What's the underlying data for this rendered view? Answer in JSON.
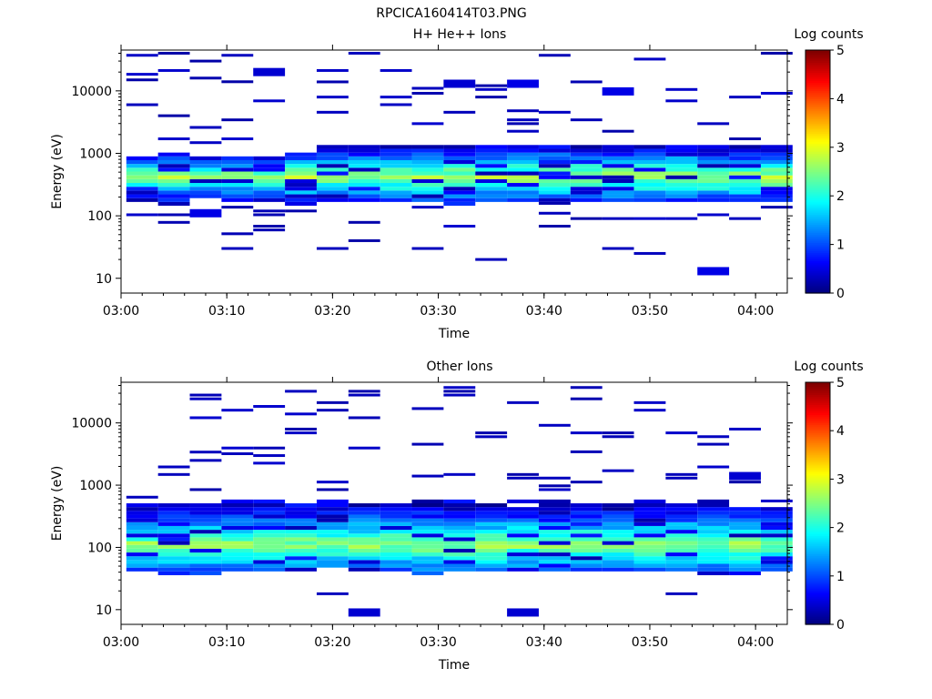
{
  "figure_title": "RPCICA160414T03.PNG",
  "chart_data": [
    {
      "type": "heatmap",
      "title": "H+ He++ Ions",
      "xlabel": "Time",
      "ylabel": "Energy (eV)",
      "x_ticks": [
        "03:00",
        "03:10",
        "03:20",
        "03:30",
        "03:40",
        "03:50",
        "04:00"
      ],
      "y_ticks": [
        "10",
        "100",
        "1000",
        "10000"
      ],
      "y_scale": "log",
      "colorbar": {
        "label": "Log counts",
        "ticks": [
          "0",
          "1",
          "2",
          "3",
          "4",
          "5"
        ],
        "range": [
          0,
          5
        ]
      },
      "colormap": "jet",
      "time_bins": [
        "03:02",
        "03:05",
        "03:08",
        "03:11",
        "03:14",
        "03:17",
        "03:20",
        "03:23",
        "03:26",
        "03:29",
        "03:32",
        "03:35",
        "03:38",
        "03:41",
        "03:44",
        "03:47",
        "03:50",
        "03:53",
        "03:56",
        "03:59",
        "04:02"
      ],
      "core_band": {
        "bottom_eV": [
          180,
          170,
          200,
          180,
          180,
          170,
          180,
          180,
          180,
          180,
          170,
          180,
          180,
          180,
          180,
          180,
          180,
          180,
          180,
          180,
          180
        ],
        "peak_eV": 420,
        "top_eV": [
          900,
          1000,
          900,
          900,
          900,
          1100,
          1300,
          1300,
          1400,
          1400,
          1400,
          1400,
          1400,
          1400,
          1400,
          1400,
          1400,
          1400,
          1400,
          1400,
          1400
        ],
        "peak_log_counts": 2.7
      },
      "sparse_counts": [
        {
          "time": "03:02",
          "energy_eV": 6000,
          "log_counts": 0.3
        },
        {
          "time": "03:02",
          "energy_eV": 15000,
          "log_counts": 0.2
        },
        {
          "time": "03:05",
          "energy_eV": 40000,
          "log_counts": 0.2
        },
        {
          "time": "03:05",
          "energy_eV": 4000,
          "log_counts": 0.2
        },
        {
          "time": "03:08",
          "energy_eV": 30000,
          "log_counts": 0.2
        },
        {
          "time": "03:08",
          "energy_eV": 2600,
          "log_counts": 0.3
        },
        {
          "time": "03:08",
          "energy_eV": 110,
          "log_counts": 0.5
        },
        {
          "time": "03:11",
          "energy_eV": 14000,
          "log_counts": 0.2
        },
        {
          "time": "03:11",
          "energy_eV": 30,
          "log_counts": 0.3
        },
        {
          "time": "03:14",
          "energy_eV": 20000,
          "log_counts": 0.4
        },
        {
          "time": "03:20",
          "energy_eV": 30,
          "log_counts": 0.3
        },
        {
          "time": "03:23",
          "energy_eV": 40000,
          "log_counts": 0.3
        },
        {
          "time": "03:23",
          "energy_eV": 40,
          "log_counts": 0.2
        },
        {
          "time": "03:29",
          "energy_eV": 11000,
          "log_counts": 0.3
        },
        {
          "time": "03:29",
          "energy_eV": 30,
          "log_counts": 0.3
        },
        {
          "time": "03:32",
          "energy_eV": 13000,
          "log_counts": 0.4
        },
        {
          "time": "03:35",
          "energy_eV": 20,
          "log_counts": 0.3
        },
        {
          "time": "03:38",
          "energy_eV": 13000,
          "log_counts": 0.5
        },
        {
          "time": "03:38",
          "energy_eV": 4800,
          "log_counts": 0.3
        },
        {
          "time": "03:41",
          "energy_eV": 110,
          "log_counts": 0.3
        },
        {
          "time": "03:47",
          "energy_eV": 9800,
          "log_counts": 0.5
        },
        {
          "time": "03:47",
          "energy_eV": 30,
          "log_counts": 0.3
        },
        {
          "time": "03:50",
          "energy_eV": 25,
          "log_counts": 0.3
        },
        {
          "time": "03:56",
          "energy_eV": 13,
          "log_counts": 0.5
        },
        {
          "time": "04:02",
          "energy_eV": 40000,
          "log_counts": 0.2
        }
      ]
    },
    {
      "type": "heatmap",
      "title": "Other Ions",
      "xlabel": "Time",
      "ylabel": "Energy (eV)",
      "x_ticks": [
        "03:00",
        "03:10",
        "03:20",
        "03:30",
        "03:40",
        "03:50",
        "04:00"
      ],
      "y_ticks": [
        "10",
        "100",
        "1000",
        "10000"
      ],
      "y_scale": "log",
      "colorbar": {
        "label": "Log counts",
        "ticks": [
          "0",
          "1",
          "2",
          "3",
          "4",
          "5"
        ],
        "range": [
          0,
          5
        ]
      },
      "colormap": "jet",
      "time_bins": [
        "03:02",
        "03:05",
        "03:08",
        "03:11",
        "03:14",
        "03:17",
        "03:20",
        "03:23",
        "03:26",
        "03:29",
        "03:32",
        "03:35",
        "03:38",
        "03:41",
        "03:44",
        "03:47",
        "03:50",
        "03:53",
        "03:56",
        "03:59",
        "04:02"
      ],
      "core_band": {
        "bottom_eV": [
          45,
          40,
          40,
          45,
          45,
          45,
          50,
          45,
          45,
          40,
          45,
          45,
          45,
          45,
          45,
          45,
          45,
          45,
          40,
          40,
          45
        ],
        "peak_eV": 110,
        "top_eV": [
          500,
          500,
          500,
          550,
          550,
          550,
          550,
          580,
          620,
          580,
          580,
          580,
          580,
          580,
          550,
          550,
          550,
          550,
          550,
          520,
          520
        ],
        "peak_log_counts": 2.6
      },
      "sparse_counts": [
        {
          "time": "03:08",
          "energy_eV": 3400,
          "log_counts": 0.3
        },
        {
          "time": "03:08",
          "energy_eV": 2500,
          "log_counts": 0.3
        },
        {
          "time": "03:11",
          "energy_eV": 3200,
          "log_counts": 0.3
        },
        {
          "time": "03:20",
          "energy_eV": 18,
          "log_counts": 0.3
        },
        {
          "time": "03:23",
          "energy_eV": 9,
          "log_counts": 0.4
        },
        {
          "time": "03:29",
          "energy_eV": 17000,
          "log_counts": 0.3
        },
        {
          "time": "03:29",
          "energy_eV": 1400,
          "log_counts": 0.3
        },
        {
          "time": "03:35",
          "energy_eV": 6000,
          "log_counts": 0.3
        },
        {
          "time": "03:38",
          "energy_eV": 9,
          "log_counts": 0.4
        },
        {
          "time": "03:38",
          "energy_eV": 1300,
          "log_counts": 0.3
        },
        {
          "time": "03:41",
          "energy_eV": 1300,
          "log_counts": 0.3
        },
        {
          "time": "03:53",
          "energy_eV": 1300,
          "log_counts": 0.3
        },
        {
          "time": "03:53",
          "energy_eV": 18,
          "log_counts": 0.3
        },
        {
          "time": "03:59",
          "energy_eV": 1400,
          "log_counts": 0.4
        }
      ]
    }
  ]
}
